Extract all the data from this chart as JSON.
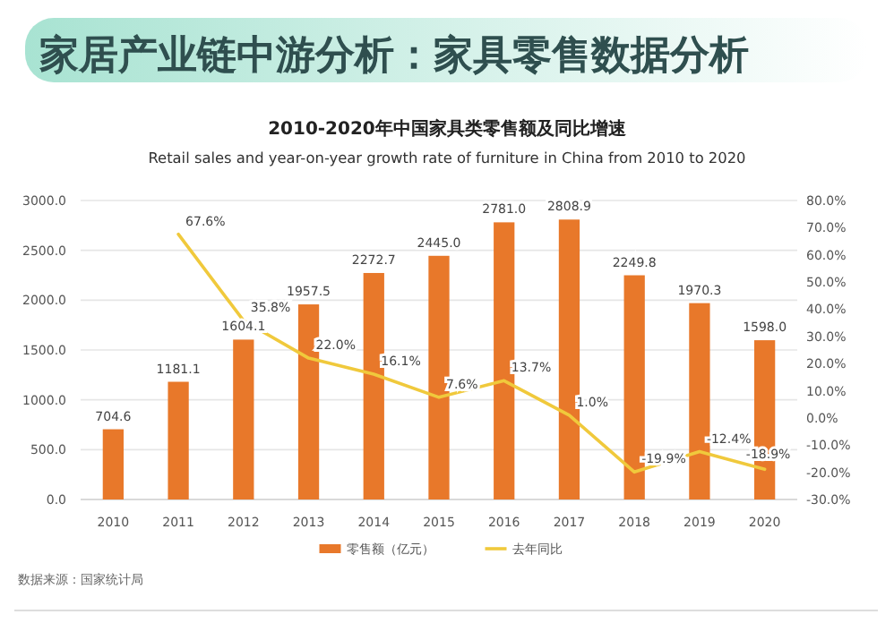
{
  "chart_data": {
    "type": "bar",
    "title": "家居产业链中游分析：家具零售数据分析",
    "subtitle": "2010-2020年中国家具类零售额及同比增速",
    "annotations": [
      "Retail sales and year-on-year growth rate of furniture in China from 2010 to 2020",
      "数据来源：国家统计局"
    ],
    "categories": [
      "2010",
      "2011",
      "2012",
      "2013",
      "2014",
      "2015",
      "2016",
      "2017",
      "2018",
      "2019",
      "2020"
    ],
    "series": [
      {
        "name": "零售额（亿元）",
        "color": "#e8782a",
        "values": [
          704.6,
          1181.1,
          1604.1,
          1957.5,
          2272.7,
          2445.0,
          2781.0,
          2808.9,
          2249.8,
          1970.3,
          1598.0
        ],
        "value_labels": [
          "704.6",
          "1181.1",
          "1604.1",
          "1957.5",
          "2272.7",
          "2445.0",
          "2781.0",
          "2808.9",
          "2249.8",
          "1970.3",
          "1598.0"
        ]
      },
      {
        "name": "去年同比",
        "type": "line",
        "axis": "y2",
        "color": "#f0c93c",
        "values": [
          null,
          67.6,
          35.8,
          22.0,
          16.1,
          7.6,
          13.7,
          1.0,
          -19.9,
          -12.4,
          -18.9
        ],
        "value_labels": [
          null,
          "67.6%",
          "35.8%",
          "22.0%",
          "16.1%",
          "7.6%",
          "13.7%",
          "1.0%",
          "-19.9%",
          "-12.4%",
          "-18.9%"
        ]
      }
    ],
    "ylim": [
      0,
      3000
    ],
    "yticks": [
      {
        "value": 0,
        "label": "0.0"
      },
      {
        "value": 500,
        "label": "500.0"
      },
      {
        "value": 1000,
        "label": "1000.0"
      },
      {
        "value": 1500,
        "label": "1500.0"
      },
      {
        "value": 2000,
        "label": "2000.0"
      },
      {
        "value": 2500,
        "label": "2500.0"
      },
      {
        "value": 3000,
        "label": "3000.0"
      }
    ],
    "y2lim": [
      -30,
      80
    ],
    "y2ticks": [
      {
        "value": -30,
        "label": "-30.0%"
      },
      {
        "value": -20,
        "label": "-20.0%"
      },
      {
        "value": -10,
        "label": "-10.0%"
      },
      {
        "value": 0,
        "label": "0.0%"
      },
      {
        "value": 10,
        "label": "10.0%"
      },
      {
        "value": 20,
        "label": "20.0%"
      },
      {
        "value": 30,
        "label": "30.0%"
      },
      {
        "value": 40,
        "label": "40.0%"
      },
      {
        "value": 50,
        "label": "50.0%"
      },
      {
        "value": 60,
        "label": "60.0%"
      },
      {
        "value": 70,
        "label": "70.0%"
      },
      {
        "value": 80,
        "label": "80.0%"
      }
    ],
    "grid": "y",
    "legend": "bottom",
    "marker": "none",
    "line_style": "solid"
  }
}
